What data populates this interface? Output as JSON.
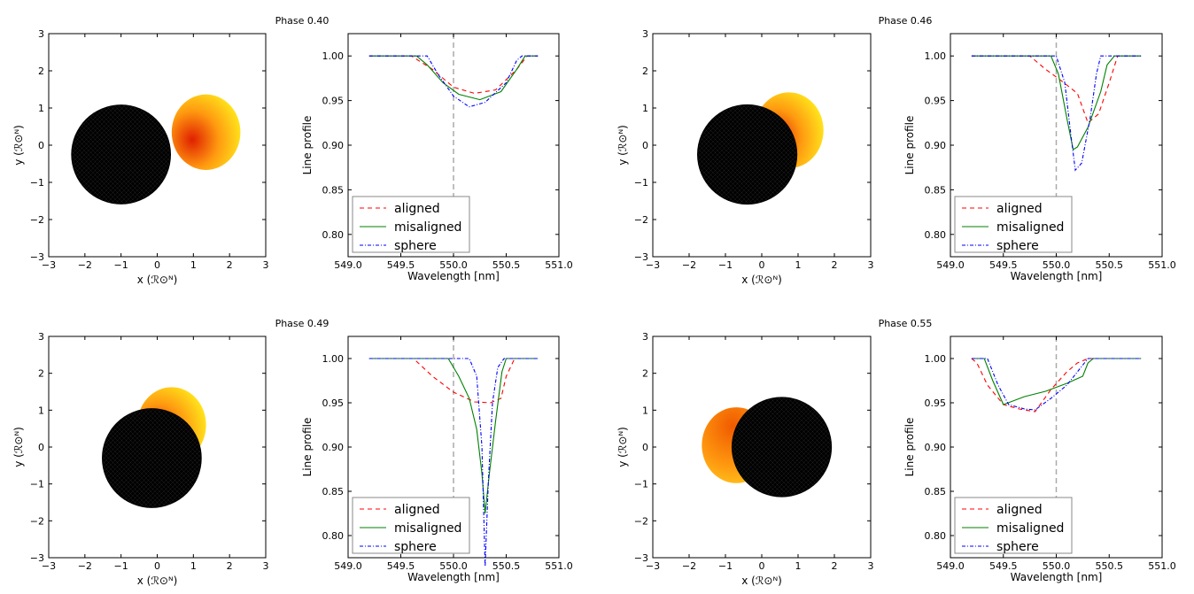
{
  "line_axis": {
    "xlabel": "Wavelength [nm]",
    "ylabel": "Line profile",
    "xticks": [
      "549.0",
      "549.5",
      "550.0",
      "550.5",
      "551.0"
    ],
    "yticks": [
      "0.80",
      "0.85",
      "0.90",
      "0.95",
      "1.00"
    ]
  },
  "orbit_axis": {
    "xlabel": "x (ℛ⊙ᴺ)",
    "ylabel": "y (ℛ⊙ᴺ)",
    "ticks": [
      "−3",
      "−2",
      "−1",
      "0",
      "1",
      "2",
      "3"
    ]
  },
  "legend": {
    "aligned": "aligned",
    "misaligned": "misaligned",
    "sphere": "sphere"
  },
  "colors": {
    "aligned": "#ff0000",
    "misaligned": "#008000",
    "sphere": "#0000ff",
    "reference": "#aaaaaa"
  },
  "chart_data": [
    {
      "type": "line",
      "title": "Phase 0.40",
      "xlim": [
        549.0,
        551.0
      ],
      "ylim": [
        0.775,
        1.025
      ],
      "reference_x": 550.0,
      "star_x": -1.0,
      "star_y": -0.25,
      "companion_x": 1.35,
      "companion_y": 0.35,
      "series": [
        {
          "name": "aligned",
          "x": [
            549.2,
            549.6,
            549.8,
            550.0,
            550.2,
            550.4,
            550.6,
            550.7,
            550.8
          ],
          "values": [
            1.0,
            1.0,
            0.985,
            0.965,
            0.958,
            0.962,
            0.985,
            1.0,
            1.0
          ]
        },
        {
          "name": "misaligned",
          "x": [
            549.2,
            549.65,
            549.75,
            549.9,
            550.05,
            550.25,
            550.45,
            550.6,
            550.68,
            550.8
          ],
          "values": [
            1.0,
            1.0,
            0.99,
            0.97,
            0.957,
            0.951,
            0.96,
            0.985,
            1.0,
            1.0
          ]
        },
        {
          "name": "sphere",
          "x": [
            549.2,
            549.75,
            549.85,
            550.0,
            550.15,
            550.3,
            550.5,
            550.6,
            550.65,
            550.8
          ],
          "values": [
            1.0,
            1.0,
            0.98,
            0.955,
            0.943,
            0.948,
            0.97,
            0.995,
            1.0,
            1.0
          ]
        }
      ]
    },
    {
      "type": "line",
      "title": "Phase 0.46",
      "xlim": [
        549.0,
        551.0
      ],
      "ylim": [
        0.775,
        1.025
      ],
      "reference_x": 550.0,
      "star_x": -0.4,
      "star_y": -0.25,
      "companion_x": 0.75,
      "companion_y": 0.4,
      "series": [
        {
          "name": "aligned",
          "x": [
            549.2,
            549.75,
            549.9,
            550.05,
            550.2,
            550.3,
            550.4,
            550.5,
            550.58,
            550.8
          ],
          "values": [
            1.0,
            1.0,
            0.985,
            0.972,
            0.958,
            0.925,
            0.935,
            0.97,
            1.0,
            1.0
          ]
        },
        {
          "name": "misaligned",
          "x": [
            549.2,
            549.95,
            550.02,
            550.1,
            550.16,
            550.2,
            550.3,
            550.42,
            550.48,
            550.55,
            550.8
          ],
          "values": [
            1.0,
            1.0,
            0.98,
            0.93,
            0.895,
            0.898,
            0.92,
            0.96,
            0.99,
            1.0,
            1.0
          ]
        },
        {
          "name": "sphere",
          "x": [
            549.2,
            550.0,
            550.08,
            550.14,
            550.18,
            550.24,
            550.32,
            550.38,
            550.42,
            550.8
          ],
          "values": [
            1.0,
            1.0,
            0.97,
            0.91,
            0.872,
            0.88,
            0.93,
            0.98,
            1.0,
            1.0
          ]
        }
      ]
    },
    {
      "type": "line",
      "title": "Phase 0.49",
      "xlim": [
        549.0,
        551.0
      ],
      "ylim": [
        0.775,
        1.025
      ],
      "reference_x": 550.0,
      "star_x": -0.15,
      "star_y": -0.3,
      "companion_x": 0.4,
      "companion_y": 0.6,
      "series": [
        {
          "name": "aligned",
          "x": [
            549.2,
            549.62,
            549.8,
            550.0,
            550.2,
            550.35,
            550.45,
            550.5,
            550.58,
            550.8
          ],
          "values": [
            1.0,
            1.0,
            0.98,
            0.962,
            0.951,
            0.95,
            0.955,
            0.98,
            1.0,
            1.0
          ]
        },
        {
          "name": "misaligned",
          "x": [
            549.2,
            549.95,
            550.05,
            550.15,
            550.22,
            550.27,
            550.3,
            550.34,
            550.4,
            550.46,
            550.5,
            550.8
          ],
          "values": [
            1.0,
            1.0,
            0.98,
            0.955,
            0.92,
            0.87,
            0.825,
            0.87,
            0.93,
            0.985,
            1.0,
            1.0
          ]
        },
        {
          "name": "sphere",
          "x": [
            549.2,
            550.15,
            550.22,
            550.27,
            550.3,
            550.33,
            550.37,
            550.42,
            550.48,
            550.8
          ],
          "values": [
            1.0,
            1.0,
            0.98,
            0.9,
            0.765,
            0.86,
            0.95,
            0.99,
            1.0,
            1.0
          ]
        }
      ]
    },
    {
      "type": "line",
      "title": "Phase 0.55",
      "xlim": [
        549.0,
        551.0
      ],
      "ylim": [
        0.775,
        1.025
      ],
      "reference_x": 550.0,
      "star_x": 0.55,
      "star_y": 0.0,
      "companion_x": -0.7,
      "companion_y": 0.05,
      "series": [
        {
          "name": "aligned",
          "x": [
            549.2,
            549.25,
            549.35,
            549.5,
            549.65,
            549.8,
            549.95,
            550.1,
            550.2,
            550.3,
            550.8
          ],
          "values": [
            1.0,
            0.995,
            0.97,
            0.948,
            0.943,
            0.94,
            0.965,
            0.985,
            0.995,
            1.0,
            1.0
          ]
        },
        {
          "name": "misaligned",
          "x": [
            549.2,
            549.32,
            549.4,
            549.5,
            549.7,
            549.9,
            550.1,
            550.25,
            550.3,
            550.35,
            550.8
          ],
          "values": [
            1.0,
            1.0,
            0.975,
            0.948,
            0.957,
            0.963,
            0.972,
            0.98,
            0.995,
            1.0,
            1.0
          ]
        },
        {
          "name": "sphere",
          "x": [
            549.2,
            549.35,
            549.45,
            549.55,
            549.7,
            549.8,
            549.95,
            550.1,
            550.2,
            550.3,
            550.8
          ],
          "values": [
            1.0,
            1.0,
            0.97,
            0.948,
            0.943,
            0.942,
            0.955,
            0.97,
            0.985,
            1.0,
            1.0
          ]
        }
      ]
    }
  ]
}
